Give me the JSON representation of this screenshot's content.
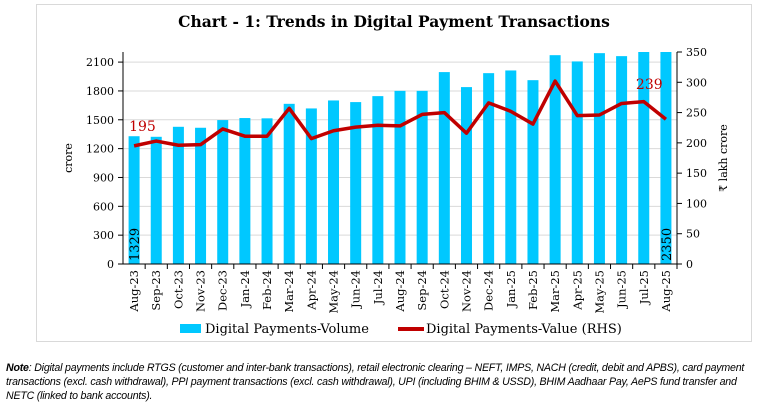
{
  "chart_data": {
    "type": "bar+line",
    "title": "Chart - 1: Trends in Digital Payment Transactions",
    "categories": [
      "Aug-23",
      "Sep-23",
      "Oct-23",
      "Nov-23",
      "Dec-23",
      "Jan-24",
      "Feb-24",
      "Mar-24",
      "Apr-24",
      "May-24",
      "Jun-24",
      "Jul-24",
      "Aug-24",
      "Sep-24",
      "Oct-24",
      "Nov-24",
      "Dec-24",
      "Jan-25",
      "Feb-25",
      "Mar-25",
      "Apr-25",
      "May-25",
      "Jun-25",
      "Jul-25",
      "Aug-25"
    ],
    "series": [
      {
        "name": "Digital Payments-Volume",
        "type": "bar",
        "axis": "left",
        "color": "#00c8ff",
        "values": [
          1329,
          1323,
          1427,
          1417,
          1497,
          1518,
          1515,
          1666,
          1618,
          1701,
          1684,
          1746,
          1801,
          1801,
          1996,
          1840,
          1985,
          2013,
          1912,
          2172,
          2107,
          2193,
          2162,
          2300,
          2350
        ]
      },
      {
        "name": "Digital Payments-Value (RHS)",
        "type": "line",
        "axis": "right",
        "color": "#c00000",
        "values": [
          195,
          203,
          196,
          197,
          223,
          211,
          211,
          257,
          207,
          220,
          226,
          229,
          228,
          247,
          250,
          216,
          266,
          252,
          231,
          302,
          245,
          246,
          265,
          268,
          239
        ]
      }
    ],
    "data_labels": {
      "first_bar": "1329",
      "last_bar": "2350",
      "first_line": "195",
      "last_line": "239"
    },
    "ylabel": "crore",
    "y2label": "₹ lakh crore",
    "ylim": [
      0,
      2205
    ],
    "y2lim": [
      0,
      350
    ],
    "yticks": [
      0,
      300,
      600,
      900,
      1200,
      1500,
      1800,
      2100
    ],
    "y2ticks": [
      0,
      50,
      100,
      150,
      200,
      250,
      300,
      350
    ],
    "grid": true,
    "legend": "bottom"
  },
  "note": {
    "label": "Note",
    "text": ": Digital payments include RTGS (customer and inter-bank transactions), retail electronic clearing – NEFT, IMPS, NACH (credit, debit and APBS), card payment transactions (excl. cash withdrawal), PPI payment transactions (excl. cash withdrawal), UPI (including BHIM & USSD), BHIM Aadhaar Pay, AePS fund transfer and NETC (linked to bank accounts)."
  }
}
